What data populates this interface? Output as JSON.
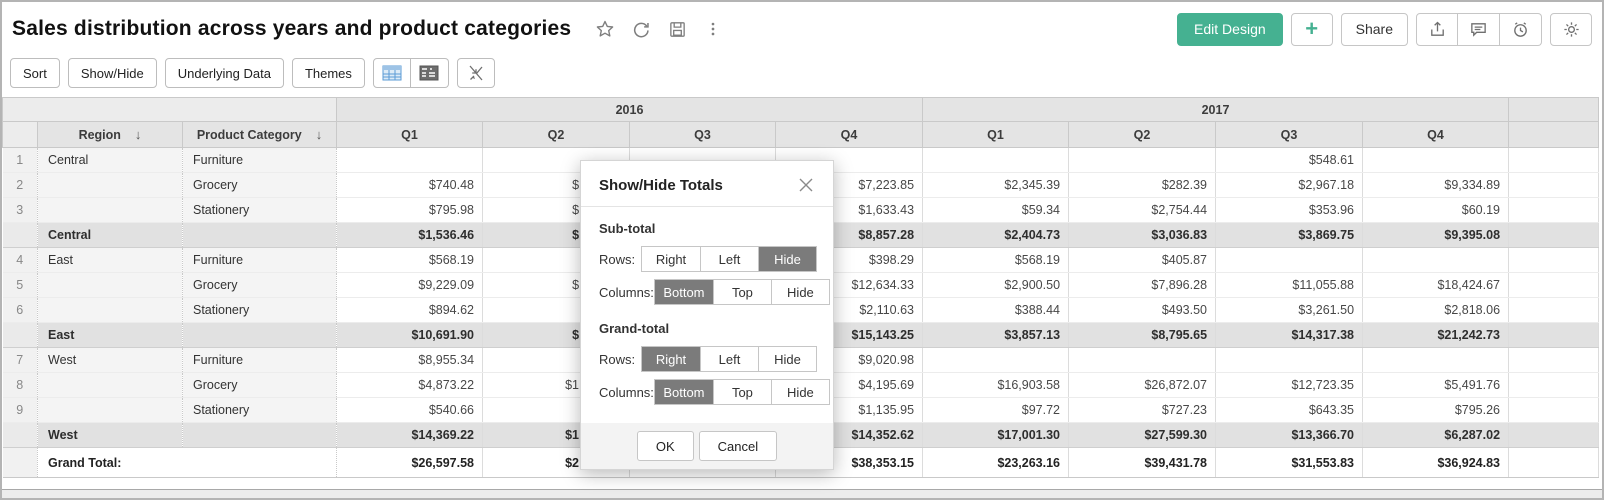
{
  "colors": {
    "accent": "#45b191",
    "segment_selected": "#7b7b7b",
    "view_icon_blue": "#5b9bd5"
  },
  "header": {
    "title": "Sales distribution across years and product categories",
    "title_icons": [
      "star-icon",
      "refresh-icon",
      "save-icon",
      "more-vertical-icon"
    ],
    "actions": {
      "edit_design": "Edit Design",
      "add": "+",
      "share": "Share"
    },
    "action_icons": [
      "export-icon",
      "comment-icon",
      "alarm-icon",
      "settings-icon"
    ]
  },
  "toolbar": {
    "buttons": [
      "Sort",
      "Show/Hide",
      "Underlying Data",
      "Themes"
    ],
    "view_icons": [
      "table-view-icon",
      "pivot-view-icon",
      "collapse-icon"
    ]
  },
  "pivot": {
    "years": [
      "2016",
      "2017"
    ],
    "quarters": [
      "Q1",
      "Q2",
      "Q3",
      "Q4"
    ],
    "row_headers": {
      "region": "Region",
      "product_category": "Product Category"
    },
    "rows": [
      {
        "num": "1",
        "region": "Central",
        "category": "Furniture",
        "type": "data",
        "values": [
          "",
          "",
          "",
          "",
          "",
          "",
          "$548.61",
          ""
        ]
      },
      {
        "num": "2",
        "region": "",
        "category": "Grocery",
        "type": "data",
        "values": [
          "$740.48",
          "$",
          "",
          "$7,223.85",
          "$2,345.39",
          "$282.39",
          "$2,967.18",
          "$9,334.89"
        ]
      },
      {
        "num": "3",
        "region": "",
        "category": "Stationery",
        "type": "data",
        "values": [
          "$795.98",
          "$",
          "",
          "$1,633.43",
          "$59.34",
          "$2,754.44",
          "$353.96",
          "$60.19"
        ]
      },
      {
        "num": "",
        "region": "Central",
        "category": "",
        "type": "subtotal",
        "values": [
          "$1,536.46",
          "$",
          "",
          "$8,857.28",
          "$2,404.73",
          "$3,036.83",
          "$3,869.75",
          "$9,395.08"
        ]
      },
      {
        "num": "4",
        "region": "East",
        "category": "Furniture",
        "type": "data",
        "values": [
          "$568.19",
          "",
          "",
          "$398.29",
          "$568.19",
          "$405.87",
          "",
          ""
        ]
      },
      {
        "num": "5",
        "region": "",
        "category": "Grocery",
        "type": "data",
        "values": [
          "$9,229.09",
          "$",
          "",
          "$12,634.33",
          "$2,900.50",
          "$7,896.28",
          "$11,055.88",
          "$18,424.67"
        ]
      },
      {
        "num": "6",
        "region": "",
        "category": "Stationery",
        "type": "data",
        "values": [
          "$894.62",
          "",
          "",
          "$2,110.63",
          "$388.44",
          "$493.50",
          "$3,261.50",
          "$2,818.06"
        ]
      },
      {
        "num": "",
        "region": "East",
        "category": "",
        "type": "subtotal",
        "values": [
          "$10,691.90",
          "$",
          "",
          "$15,143.25",
          "$3,857.13",
          "$8,795.65",
          "$14,317.38",
          "$21,242.73"
        ]
      },
      {
        "num": "7",
        "region": "West",
        "category": "Furniture",
        "type": "data",
        "values": [
          "$8,955.34",
          "",
          "",
          "$9,020.98",
          "",
          "",
          "",
          ""
        ]
      },
      {
        "num": "8",
        "region": "",
        "category": "Grocery",
        "type": "data",
        "values": [
          "$4,873.22",
          "$1",
          "",
          "$4,195.69",
          "$16,903.58",
          "$26,872.07",
          "$12,723.35",
          "$5,491.76"
        ]
      },
      {
        "num": "9",
        "region": "",
        "category": "Stationery",
        "type": "data",
        "values": [
          "$540.66",
          "",
          "",
          "$1,135.95",
          "$97.72",
          "$727.23",
          "$643.35",
          "$795.26"
        ]
      },
      {
        "num": "",
        "region": "West",
        "category": "",
        "type": "subtotal",
        "values": [
          "$14,369.22",
          "$1",
          "",
          "$14,352.62",
          "$17,001.30",
          "$27,599.30",
          "$13,366.70",
          "$6,287.02"
        ]
      },
      {
        "num": "",
        "region": "Grand Total:",
        "category": "",
        "type": "grand",
        "values": [
          "$26,597.58",
          "$2",
          "",
          "$38,353.15",
          "$23,263.16",
          "$39,431.78",
          "$31,553.83",
          "$36,924.83"
        ]
      }
    ]
  },
  "dialog": {
    "title": "Show/Hide Totals",
    "sections": [
      {
        "label": "Sub-total",
        "rows": [
          {
            "label": "Rows:",
            "options": [
              "Right",
              "Left",
              "Hide"
            ],
            "selected": "Hide"
          },
          {
            "label": "Columns:",
            "options": [
              "Bottom",
              "Top",
              "Hide"
            ],
            "selected": "Bottom"
          }
        ]
      },
      {
        "label": "Grand-total",
        "rows": [
          {
            "label": "Rows:",
            "options": [
              "Right",
              "Left",
              "Hide"
            ],
            "selected": "Right"
          },
          {
            "label": "Columns:",
            "options": [
              "Bottom",
              "Top",
              "Hide"
            ],
            "selected": "Bottom"
          }
        ]
      }
    ],
    "ok": "OK",
    "cancel": "Cancel"
  }
}
